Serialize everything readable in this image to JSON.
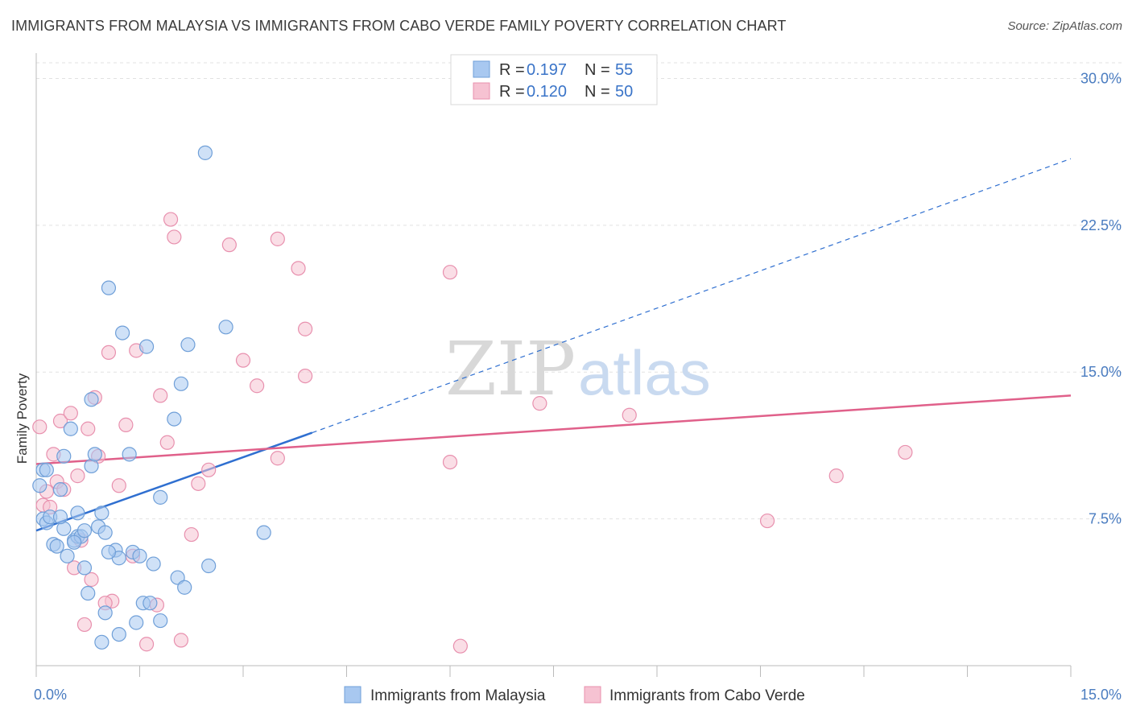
{
  "title": "IMMIGRANTS FROM MALAYSIA VS IMMIGRANTS FROM CABO VERDE FAMILY POVERTY CORRELATION CHART",
  "source": "Source: ZipAtlas.com",
  "watermark": {
    "zip": "ZIP",
    "atlas": "atlas"
  },
  "chart_data": {
    "type": "scatter",
    "ylabel": "Family Poverty",
    "xlim": [
      0,
      15
    ],
    "ylim": [
      0,
      30.8
    ],
    "x_tick_labels": [
      {
        "value": 0,
        "label": "0.0%"
      },
      {
        "value": 15,
        "label": "15.0%"
      }
    ],
    "y_tick_labels": [
      {
        "value": 7.5,
        "label": "7.5%"
      },
      {
        "value": 15,
        "label": "15.0%"
      },
      {
        "value": 22.5,
        "label": "22.5%"
      },
      {
        "value": 30,
        "label": "30.0%"
      }
    ],
    "grid": true,
    "legend_position": "top-center",
    "series": [
      {
        "name": "Immigrants from Malaysia",
        "color": "#a8c8f0",
        "stroke": "#6f9fd8",
        "line_color": "#2f6fd0",
        "R": "0.197",
        "N": "55",
        "trend": {
          "x0": 0,
          "y0": 6.9,
          "x1": 4.0,
          "y1": 11.9,
          "dash_to_x": 15.0,
          "dash_to_y": 25.9
        },
        "points": [
          [
            0.05,
            9.2
          ],
          [
            0.1,
            10.0
          ],
          [
            0.1,
            7.5
          ],
          [
            0.15,
            7.3
          ],
          [
            0.2,
            7.6
          ],
          [
            0.25,
            6.2
          ],
          [
            0.3,
            6.1
          ],
          [
            0.35,
            9.0
          ],
          [
            0.4,
            10.7
          ],
          [
            0.4,
            7.0
          ],
          [
            0.45,
            5.6
          ],
          [
            0.5,
            12.1
          ],
          [
            0.55,
            6.4
          ],
          [
            0.6,
            6.6
          ],
          [
            0.6,
            7.8
          ],
          [
            0.65,
            6.6
          ],
          [
            0.7,
            6.9
          ],
          [
            0.7,
            5.0
          ],
          [
            0.75,
            3.7
          ],
          [
            0.8,
            13.6
          ],
          [
            0.8,
            10.2
          ],
          [
            0.85,
            10.8
          ],
          [
            0.9,
            7.1
          ],
          [
            0.95,
            7.8
          ],
          [
            1.0,
            2.7
          ],
          [
            1.0,
            6.8
          ],
          [
            1.05,
            19.3
          ],
          [
            1.15,
            5.9
          ],
          [
            1.2,
            5.5
          ],
          [
            1.2,
            1.6
          ],
          [
            1.25,
            17.0
          ],
          [
            1.35,
            10.8
          ],
          [
            1.4,
            5.8
          ],
          [
            1.45,
            2.2
          ],
          [
            1.5,
            5.6
          ],
          [
            1.55,
            3.2
          ],
          [
            1.6,
            16.3
          ],
          [
            1.65,
            3.2
          ],
          [
            1.7,
            5.2
          ],
          [
            1.8,
            8.6
          ],
          [
            1.8,
            2.3
          ],
          [
            2.0,
            12.6
          ],
          [
            2.05,
            4.5
          ],
          [
            2.1,
            14.4
          ],
          [
            2.15,
            4.0
          ],
          [
            2.2,
            16.4
          ],
          [
            2.5,
            5.1
          ],
          [
            2.45,
            26.2
          ],
          [
            2.75,
            17.3
          ],
          [
            3.3,
            6.8
          ],
          [
            0.95,
            1.2
          ],
          [
            0.55,
            6.3
          ],
          [
            0.35,
            7.6
          ],
          [
            1.05,
            5.8
          ],
          [
            0.15,
            10.0
          ]
        ]
      },
      {
        "name": "Immigrants from Cabo Verde",
        "color": "#f6c2d2",
        "stroke": "#e890ae",
        "line_color": "#e0608a",
        "R": "0.120",
        "N": "50",
        "trend": {
          "x0": 0,
          "y0": 10.3,
          "x1": 15.0,
          "y1": 13.8
        },
        "points": [
          [
            0.05,
            12.2
          ],
          [
            0.1,
            8.2
          ],
          [
            0.15,
            8.9
          ],
          [
            0.2,
            8.1
          ],
          [
            0.25,
            10.8
          ],
          [
            0.3,
            9.4
          ],
          [
            0.35,
            12.5
          ],
          [
            0.4,
            9.0
          ],
          [
            0.5,
            12.9
          ],
          [
            0.55,
            5.0
          ],
          [
            0.6,
            9.7
          ],
          [
            0.65,
            6.4
          ],
          [
            0.7,
            2.1
          ],
          [
            0.75,
            12.1
          ],
          [
            0.8,
            4.4
          ],
          [
            0.85,
            13.7
          ],
          [
            0.9,
            10.7
          ],
          [
            1.05,
            16.0
          ],
          [
            1.1,
            3.3
          ],
          [
            1.2,
            9.2
          ],
          [
            1.3,
            12.3
          ],
          [
            1.4,
            5.6
          ],
          [
            1.45,
            16.1
          ],
          [
            1.6,
            1.1
          ],
          [
            1.75,
            3.1
          ],
          [
            1.8,
            13.8
          ],
          [
            1.9,
            11.4
          ],
          [
            1.95,
            22.8
          ],
          [
            2.0,
            21.9
          ],
          [
            2.1,
            1.3
          ],
          [
            2.25,
            6.7
          ],
          [
            2.35,
            9.3
          ],
          [
            2.5,
            10.0
          ],
          [
            2.8,
            21.5
          ],
          [
            3.0,
            15.6
          ],
          [
            3.2,
            14.3
          ],
          [
            3.5,
            10.6
          ],
          [
            3.5,
            21.8
          ],
          [
            3.8,
            20.3
          ],
          [
            3.9,
            17.2
          ],
          [
            3.9,
            14.8
          ],
          [
            6.0,
            20.1
          ],
          [
            6.0,
            10.4
          ],
          [
            6.15,
            1.0
          ],
          [
            7.3,
            13.4
          ],
          [
            8.6,
            12.8
          ],
          [
            10.6,
            7.4
          ],
          [
            11.6,
            9.7
          ],
          [
            12.6,
            10.9
          ],
          [
            1.0,
            3.2
          ]
        ]
      }
    ]
  }
}
